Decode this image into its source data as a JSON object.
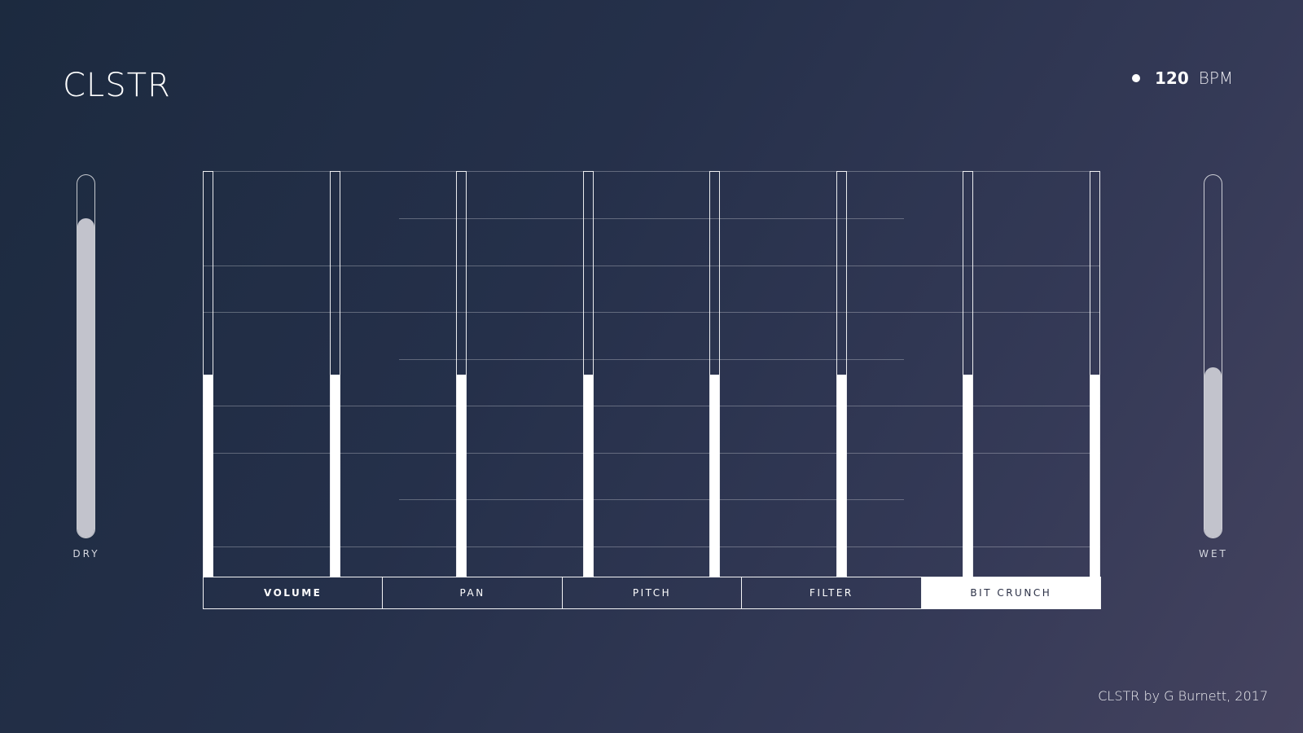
{
  "app": {
    "title": "CLSTR"
  },
  "tempo": {
    "value": "120",
    "unit": "BPM"
  },
  "mix": {
    "dry": {
      "label": "DRY",
      "level": 0.88
    },
    "wet": {
      "label": "WET",
      "level": 0.47
    }
  },
  "sequencer": {
    "step_levels": [
      0.5,
      0.5,
      0.5,
      0.5,
      0.5,
      0.5,
      0.5,
      0.5
    ]
  },
  "tabs": [
    {
      "label": "VOLUME",
      "active": false
    },
    {
      "label": "PAN",
      "active": false
    },
    {
      "label": "PITCH",
      "active": false
    },
    {
      "label": "FILTER",
      "active": false
    },
    {
      "label": "BIT CRUNCH",
      "active": true
    }
  ],
  "footer": {
    "credit": "CLSTR by G Burnett, 2017"
  },
  "colors": {
    "accent": "#ffffff",
    "slider_fill": "#c2c3cc",
    "active_tab_text": "#2a2f45"
  }
}
